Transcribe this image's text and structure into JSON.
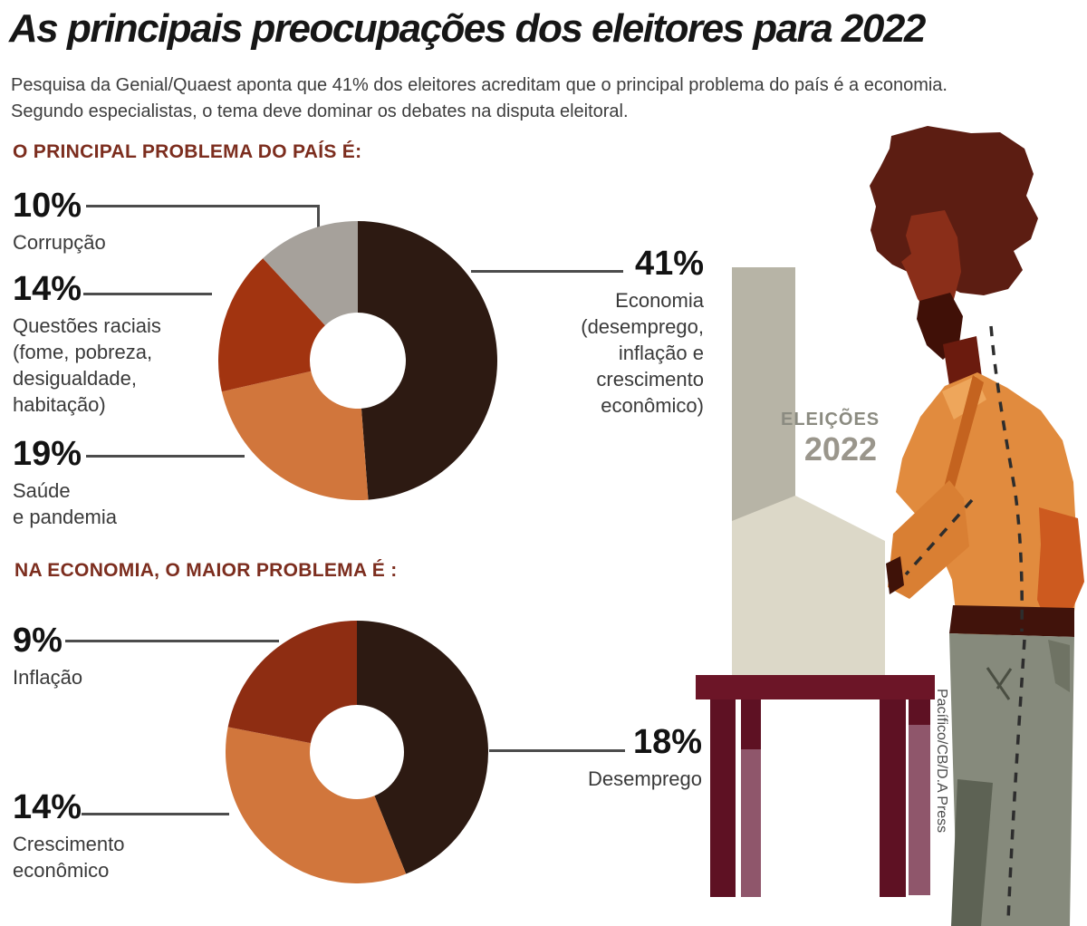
{
  "page": {
    "title": "As principais preocupações dos eleitores para 2022",
    "subtitle": "Pesquisa da Genial/Quaest aponta que 41% dos eleitores acreditam que o principal problema do país é a economia.\nSegundo especialistas, o tema deve dominar os debates na disputa eleitoral.",
    "credit": "Pacífico/CB/D.A Press"
  },
  "illustration": {
    "eleicoes_label": "ELEIÇÕES",
    "year_label": "2022"
  },
  "colors": {
    "heading_accent": "#7c2d1e",
    "leader_line": "#4c4c4c",
    "slice_dark": "#2d1a12",
    "slice_orange": "#d1763c",
    "slice_rust": "#a23410",
    "slice_dark_red": "#8e2d12",
    "slice_gray": "#a6a19b"
  },
  "callouts": {
    "c1_corrupcao": {
      "pct": "10%",
      "label": "Corrupção"
    },
    "c1_questoes": {
      "pct": "14%",
      "label": "Questões raciais\n(fome, pobreza,\ndesigualdade,\nhabitação)"
    },
    "c1_saude": {
      "pct": "19%",
      "label": "Saúde\ne pandemia"
    },
    "c1_economia": {
      "pct": "41%",
      "label": "Economia\n(desemprego,\ninflação e\ncrescimento\neconômico)"
    },
    "c2_inflacao": {
      "pct": "9%",
      "label": "Inflação"
    },
    "c2_crescimento": {
      "pct": "14%",
      "label": "Crescimento\neconômico"
    },
    "c2_desemprego": {
      "pct": "18%",
      "label": "Desemprego"
    }
  },
  "chart_data": [
    {
      "type": "pie",
      "donut": true,
      "title": "O PRINCIPAL PROBLEMA DO PAÍS É:",
      "unit": "%",
      "start_angle_deg": 0,
      "direction": "clockwise",
      "legend_position": "callouts",
      "slices": [
        {
          "label": "Economia (desemprego, inflação e crescimento econômico)",
          "value": 41,
          "color": "#2d1a12"
        },
        {
          "label": "Saúde e pandemia",
          "value": 19,
          "color": "#d1763c"
        },
        {
          "label": "Questões raciais (fome, pobreza, desigualdade, habitação)",
          "value": 14,
          "color": "#a23410"
        },
        {
          "label": "Corrupção",
          "value": 10,
          "color": "#a6a19b"
        }
      ]
    },
    {
      "type": "pie",
      "donut": true,
      "title": "NA ECONOMIA, O MAIOR PROBLEMA É :",
      "unit": "%",
      "start_angle_deg": 0,
      "direction": "clockwise",
      "legend_position": "callouts",
      "slices": [
        {
          "label": "Desemprego",
          "value": 18,
          "color": "#2d1a12"
        },
        {
          "label": "Crescimento econômico",
          "value": 14,
          "color": "#d1763c"
        },
        {
          "label": "Inflação",
          "value": 9,
          "color": "#8e2d12"
        }
      ]
    }
  ]
}
